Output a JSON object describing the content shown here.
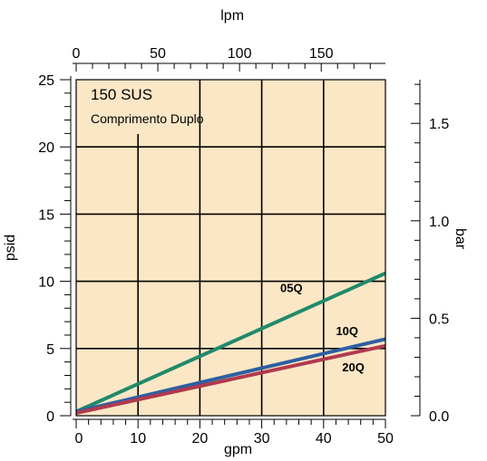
{
  "chart_data": {
    "type": "line",
    "background_color": "#fbe7c5",
    "annotation_title": "150 SUS",
    "annotation_subtitle": "Comprimento Duplo",
    "xlabel": "gpm",
    "ylabel": "psid",
    "x2label": "lpm",
    "y2label": "bar",
    "xlim": [
      0,
      50
    ],
    "ylim": [
      0,
      25
    ],
    "x2lim": [
      0,
      189.3
    ],
    "y2lim": [
      0,
      1.724
    ],
    "x_ticks": [
      "0",
      "10",
      "20",
      "30",
      "40",
      "50"
    ],
    "y_ticks": [
      "0",
      "5",
      "10",
      "15",
      "20",
      "25"
    ],
    "x2_ticks": [
      "0",
      "50",
      "100",
      "150"
    ],
    "y2_ticks": [
      "0.0",
      "0.5",
      "1.0",
      "1.5"
    ],
    "grid": true,
    "series": [
      {
        "name": "05Q",
        "color": "#1f8a6a",
        "x": [
          0,
          50
        ],
        "y": [
          0.3,
          10.6
        ]
      },
      {
        "name": "10Q",
        "color": "#2e5fa3",
        "x": [
          0,
          50
        ],
        "y": [
          0.3,
          5.7
        ]
      },
      {
        "name": "20Q",
        "color": "#b03a4e",
        "x": [
          0,
          50
        ],
        "y": [
          0.2,
          5.2
        ]
      }
    ]
  }
}
